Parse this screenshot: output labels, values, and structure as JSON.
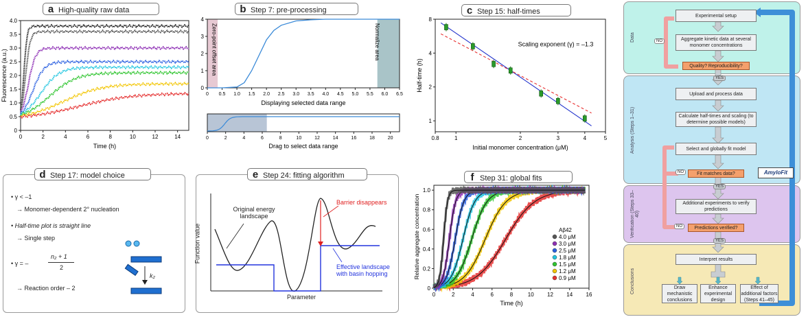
{
  "panel_a": {
    "letter": "a",
    "title": "High-quality raw data",
    "xlabel": "Time (h)",
    "ylabel": "Fluorescence (a.u.)",
    "xticks": [
      "0",
      "2",
      "4",
      "6",
      "8",
      "10",
      "12",
      "14"
    ],
    "yticks": [
      "0",
      "0.5",
      "1.0",
      "1.5",
      "2.0",
      "2.5",
      "3.0",
      "3.5",
      "4.0"
    ]
  },
  "panel_b": {
    "letter": "b",
    "title": "Step 7: pre-processing",
    "zero_label": "Zero-point offset area",
    "norm_label": "Normalize area",
    "top_xlabel": "Displaying selected data range",
    "top_xticks": [
      "0",
      "0.5",
      "1.0",
      "1.5",
      "2.0",
      "2.5",
      "3.0",
      "3.5",
      "4.0",
      "4.5",
      "5.0",
      "5.5",
      "6.0",
      "6.5"
    ],
    "top_yticks": [
      "0",
      "1",
      "2",
      "3",
      "4"
    ],
    "bottom_xlabel": "Drag to select data range",
    "bottom_xticks": [
      "0",
      "2",
      "4",
      "6",
      "8",
      "10",
      "12",
      "14",
      "16",
      "18",
      "20"
    ]
  },
  "panel_c": {
    "letter": "c",
    "title": "Step 15: half-times",
    "xlabel": "Initial monomer concentration (μM)",
    "ylabel": "Half-time (h)",
    "annotation": "Scaling exponent (γ) = –1.3",
    "xticks": [
      "0.8",
      "1",
      "2",
      "3",
      "4",
      "5"
    ],
    "yticks": [
      "1",
      "2",
      "4",
      "8"
    ]
  },
  "panel_d": {
    "letter": "d",
    "title": "Step 17: model choice",
    "line1": "• γ < –1",
    "line2": "→ Monomer-dependent 2° nucleation",
    "line3": "• Half-time plot is straight line",
    "line4": "→ Single step",
    "line5a": "• γ = –",
    "line5_num": "n₂ + 1",
    "line5_den": "2",
    "line6": "→ Reaction order – 2",
    "k_label": "k₂"
  },
  "panel_e": {
    "letter": "e",
    "title": "Step 24: fitting algorithm",
    "label_original": "Original energy landscape",
    "label_barrier": "Barrier disappears",
    "label_effective": "Effective landscape with basin hopping",
    "xlabel": "Parameter",
    "ylabel": "Function value"
  },
  "panel_f": {
    "letter": "f",
    "title": "Step 31: global fits",
    "xlabel": "Time (h)",
    "ylabel": "Relative aggregate concentration",
    "legend_title": "Aβ42",
    "xticks": [
      "0",
      "2",
      "4",
      "6",
      "8",
      "10",
      "12",
      "14",
      "16"
    ],
    "yticks": [
      "0",
      "0.2",
      "0.4",
      "0.6",
      "0.8",
      "1.0"
    ],
    "legend": [
      {
        "label": "4.0 μM",
        "color": "#555555"
      },
      {
        "label": "3.0 μM",
        "color": "#8e2fb5"
      },
      {
        "label": "2.5 μM",
        "color": "#2a5fe0"
      },
      {
        "label": "1.8 μM",
        "color": "#23c6e0"
      },
      {
        "label": "1.5 μM",
        "color": "#2fc52f"
      },
      {
        "label": "1.2 μM",
        "color": "#f2c500"
      },
      {
        "label": "0.9 μM",
        "color": "#e53030"
      }
    ]
  },
  "flow": {
    "lanes": {
      "data": "Data",
      "analysis": "Analysis (Steps 1–31)",
      "verification": "Verification (Steps 33–40)",
      "conclusions": "Conclusions"
    },
    "boxes": {
      "setup": "Experimental setup",
      "aggregate": "Aggregate kinetic data at several monomer concentrations",
      "quality": "Quality? Reproducibility?",
      "upload": "Upload and process data",
      "calc": "Calculate half-times and scaling (to determine possible models)",
      "select": "Select and globally fit model",
      "fit": "Fit matches data?",
      "additional": "Additional experiments to verify predictions",
      "verified": "Predictions verified?",
      "interpret": "Interpret results",
      "draw": "Draw mechanistic conclusions",
      "enhance": "Enhance experimental design",
      "effect": "Effect of additional factors (Steps 41–45)"
    },
    "no": "NO",
    "yes": "YES",
    "logo": "AmyloFit"
  },
  "chart_data": [
    {
      "type": "scatter",
      "panel": "a",
      "title": "High-quality raw data",
      "xlabel": "Time (h)",
      "ylabel": "Fluorescence (a.u.)",
      "xlim": [
        0,
        15
      ],
      "ylim": [
        0,
        4
      ],
      "series": [
        {
          "color": "#222222",
          "plateau": 3.8,
          "t_half": 0.3
        },
        {
          "color": "#555555",
          "plateau": 3.6,
          "t_half": 0.45
        },
        {
          "color": "#8e2fb5",
          "plateau": 3.0,
          "t_half": 0.7
        },
        {
          "color": "#2a5fe0",
          "plateau": 2.5,
          "t_half": 1.1
        },
        {
          "color": "#23c6e0",
          "plateau": 2.3,
          "t_half": 1.8
        },
        {
          "color": "#2fc52f",
          "plateau": 2.1,
          "t_half": 2.6
        },
        {
          "color": "#f2c500",
          "plateau": 1.7,
          "t_half": 3.8
        },
        {
          "color": "#e53030",
          "plateau": 1.35,
          "t_half": 5.2
        }
      ]
    },
    {
      "type": "line",
      "panel": "b",
      "title": "Step 7: pre-processing",
      "xlim": [
        0,
        6.5
      ],
      "ylim": [
        0,
        4
      ],
      "x": [
        0,
        0.5,
        1,
        1.25,
        1.5,
        1.75,
        2,
        2.25,
        2.5,
        3,
        3.5,
        4,
        5,
        6,
        6.5
      ],
      "y": [
        0,
        0,
        0.05,
        0.3,
        1.0,
        1.9,
        2.8,
        3.35,
        3.65,
        3.9,
        3.97,
        4,
        4,
        4,
        4
      ]
    },
    {
      "type": "scatter",
      "panel": "c",
      "title": "Step 15: half-times",
      "xlabel": "Initial monomer concentration (μM)",
      "ylabel": "Half-time (h)",
      "xlim": [
        0.8,
        5
      ],
      "ylim": [
        0.8,
        8
      ],
      "x": [
        0.9,
        1.2,
        1.5,
        1.8,
        2.5,
        3.0,
        4.0
      ],
      "y": [
        6.8,
        4.6,
        3.2,
        2.8,
        1.75,
        1.5,
        1.05
      ],
      "fits": [
        {
          "exponent": -1.3,
          "style": "solid"
        },
        {
          "exponent": -1.0,
          "style": "dashed"
        }
      ]
    },
    {
      "type": "scatter",
      "panel": "f",
      "title": "Step 31: global fits",
      "xlabel": "Time (h)",
      "ylabel": "Relative aggregate concentration",
      "xlim": [
        0,
        16
      ],
      "ylim": [
        0,
        1.05
      ],
      "series": [
        {
          "name": "4.0 μM",
          "color": "#555555",
          "t_half": 1.0
        },
        {
          "name": "3.0 μM",
          "color": "#8e2fb5",
          "t_half": 1.6
        },
        {
          "name": "2.5 μM",
          "color": "#2a5fe0",
          "t_half": 2.2
        },
        {
          "name": "1.8 μM",
          "color": "#23c6e0",
          "t_half": 3.0
        },
        {
          "name": "1.5 μM",
          "color": "#2fc52f",
          "t_half": 3.9
        },
        {
          "name": "1.2 μM",
          "color": "#f2c500",
          "t_half": 5.3
        },
        {
          "name": "0.9 μM",
          "color": "#e53030",
          "t_half": 7.4
        }
      ]
    }
  ]
}
